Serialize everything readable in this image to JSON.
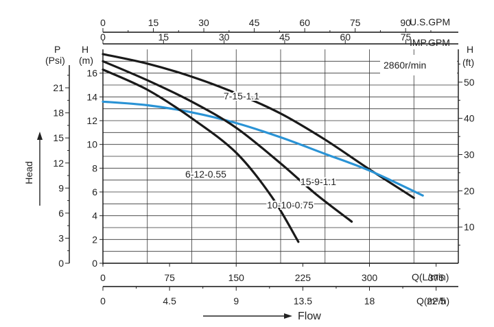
{
  "chart_data": {
    "type": "line",
    "speed_label": "2860r/min",
    "axis_labels": {
      "us_gpm": "U.S.GPM",
      "imp_gpm": "IMP.GPM",
      "psi_title": "P",
      "psi_unit": "(Psi)",
      "head_m_title": "H",
      "head_m_unit": "(m)",
      "head_ft_title": "H",
      "head_ft_unit": "(ft)",
      "lpm": "Q(L/min)",
      "m3h": "Q(m³/h)",
      "head": "Head",
      "flow": "Flow"
    },
    "x_lpm": {
      "range": [
        0,
        400
      ],
      "ticks": [
        "0",
        "75",
        "150",
        "225",
        "300",
        "375"
      ],
      "values": [
        0,
        75,
        150,
        225,
        300,
        375
      ]
    },
    "x_m3h": {
      "ticks": [
        "0",
        "4.5",
        "9",
        "13.5",
        "18",
        "22.5"
      ],
      "values": [
        0,
        4.5,
        9,
        13.5,
        18,
        22.5
      ]
    },
    "x_usgpm": {
      "ticks": [
        "0",
        "15",
        "30",
        "45",
        "60",
        "75",
        "90"
      ],
      "values": [
        0,
        15,
        30,
        45,
        60,
        75,
        90
      ]
    },
    "x_impgpm": {
      "ticks": [
        "0",
        "15",
        "30",
        "45",
        "60",
        "75"
      ],
      "values": [
        0,
        15,
        30,
        45,
        60,
        75
      ]
    },
    "y_m": {
      "range": [
        0,
        18
      ],
      "ticks": [
        "0",
        "2",
        "4",
        "6",
        "8",
        "10",
        "12",
        "14",
        "16"
      ],
      "values": [
        0,
        2,
        4,
        6,
        8,
        10,
        12,
        14,
        16
      ]
    },
    "y_psi": {
      "ticks": [
        "0",
        "3",
        "6",
        "9",
        "12",
        "15",
        "18",
        "21"
      ],
      "values": [
        0,
        3,
        6,
        9,
        12,
        15,
        18,
        21
      ]
    },
    "y_ft": {
      "ticks": [
        "10",
        "20",
        "30",
        "40",
        "50"
      ],
      "values": [
        10,
        20,
        30,
        40,
        50
      ]
    },
    "series": [
      {
        "name": "7-15-1.1",
        "color": "#1a1a1a",
        "x": [
          0,
          50,
          100,
          150,
          200,
          250,
          300,
          350
        ],
        "y": [
          17.6,
          16.8,
          15.7,
          14.3,
          12.6,
          10.4,
          7.9,
          5.5
        ]
      },
      {
        "name": "15-9-1.1",
        "color": "#2a93d5",
        "x": [
          0,
          50,
          100,
          150,
          200,
          250,
          300,
          360
        ],
        "y": [
          13.6,
          13.3,
          12.7,
          11.8,
          10.6,
          9.2,
          7.8,
          5.7
        ]
      },
      {
        "name": "10-10-0.75",
        "color": "#1a1a1a",
        "x": [
          0,
          50,
          100,
          150,
          200,
          240,
          280
        ],
        "y": [
          17.0,
          15.4,
          13.6,
          11.4,
          8.4,
          5.8,
          3.5
        ]
      },
      {
        "name": "6-12-0.55",
        "color": "#1a1a1a",
        "x": [
          0,
          50,
          100,
          150,
          190,
          220
        ],
        "y": [
          16.3,
          14.6,
          12.2,
          9.3,
          5.6,
          1.8
        ]
      }
    ]
  }
}
